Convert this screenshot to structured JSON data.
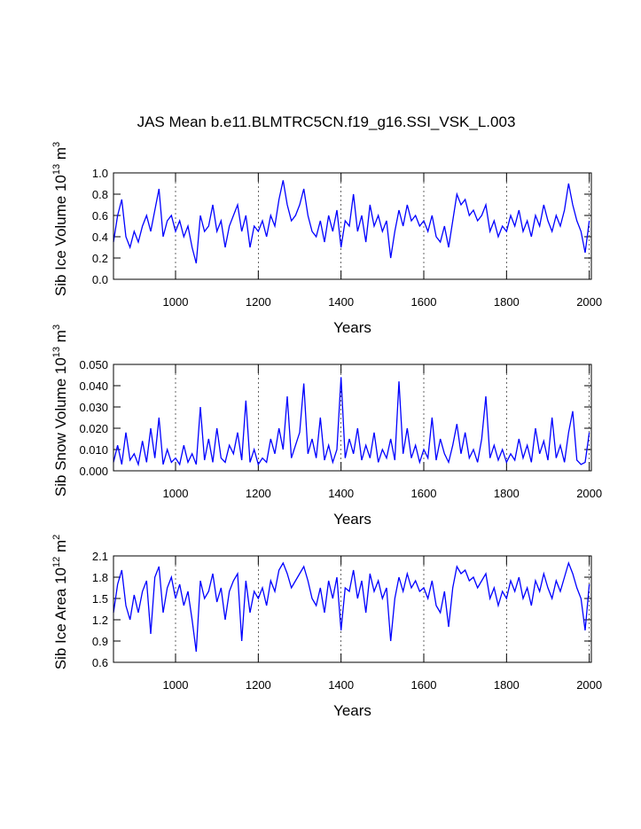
{
  "chart_data": [
    {
      "type": "line",
      "title": "JAS Mean b.e11.BLMTRC5CN.f19_g16.SSI_VSK_L.003",
      "xlabel": "Years",
      "ylabel": "Sib Ice Volume 10",
      "ylabel_exp": "13",
      "ylabel_unit": " m",
      "ylabel_unit_exp": "3",
      "color": "#0000ff",
      "xlim": [
        850,
        2005
      ],
      "xticks": [
        1000,
        1200,
        1400,
        1600,
        1800,
        2000
      ],
      "grid": true,
      "ylim": [
        0,
        1
      ],
      "yticks": [
        {
          "value": 0,
          "label": "0.0"
        },
        0.2,
        0.4,
        0.6,
        0.8,
        {
          "value": 1,
          "label": "1.0"
        }
      ],
      "x": [
        850,
        860,
        870,
        880,
        890,
        900,
        910,
        920,
        930,
        940,
        950,
        960,
        970,
        980,
        990,
        1000,
        1010,
        1020,
        1030,
        1040,
        1050,
        1060,
        1070,
        1080,
        1090,
        1100,
        1110,
        1120,
        1130,
        1140,
        1150,
        1160,
        1170,
        1180,
        1190,
        1200,
        1210,
        1220,
        1230,
        1240,
        1250,
        1260,
        1270,
        1280,
        1290,
        1300,
        1310,
        1320,
        1330,
        1340,
        1350,
        1360,
        1370,
        1380,
        1390,
        1400,
        1410,
        1420,
        1430,
        1440,
        1450,
        1460,
        1470,
        1480,
        1490,
        1500,
        1510,
        1520,
        1530,
        1540,
        1550,
        1560,
        1570,
        1580,
        1590,
        1600,
        1610,
        1620,
        1630,
        1640,
        1650,
        1660,
        1670,
        1680,
        1690,
        1700,
        1710,
        1720,
        1730,
        1740,
        1750,
        1760,
        1770,
        1780,
        1790,
        1800,
        1810,
        1820,
        1830,
        1840,
        1850,
        1860,
        1870,
        1880,
        1890,
        1900,
        1910,
        1920,
        1930,
        1940,
        1950,
        1960,
        1970,
        1980,
        1990,
        2000
      ],
      "values": [
        0.35,
        0.6,
        0.75,
        0.4,
        0.3,
        0.45,
        0.35,
        0.5,
        0.6,
        0.45,
        0.65,
        0.85,
        0.4,
        0.55,
        0.6,
        0.45,
        0.55,
        0.4,
        0.5,
        0.3,
        0.15,
        0.6,
        0.45,
        0.5,
        0.7,
        0.45,
        0.55,
        0.3,
        0.5,
        0.6,
        0.7,
        0.45,
        0.6,
        0.3,
        0.5,
        0.45,
        0.55,
        0.4,
        0.6,
        0.5,
        0.75,
        0.93,
        0.7,
        0.55,
        0.6,
        0.7,
        0.85,
        0.6,
        0.45,
        0.4,
        0.55,
        0.35,
        0.6,
        0.45,
        0.65,
        0.3,
        0.55,
        0.5,
        0.8,
        0.45,
        0.6,
        0.35,
        0.7,
        0.5,
        0.6,
        0.45,
        0.55,
        0.2,
        0.45,
        0.65,
        0.5,
        0.7,
        0.55,
        0.6,
        0.5,
        0.55,
        0.45,
        0.6,
        0.4,
        0.35,
        0.5,
        0.3,
        0.55,
        0.8,
        0.7,
        0.75,
        0.6,
        0.65,
        0.55,
        0.6,
        0.7,
        0.45,
        0.55,
        0.4,
        0.5,
        0.45,
        0.6,
        0.5,
        0.65,
        0.45,
        0.55,
        0.4,
        0.6,
        0.5,
        0.7,
        0.55,
        0.45,
        0.6,
        0.5,
        0.65,
        0.9,
        0.7,
        0.55,
        0.45,
        0.25,
        0.55
      ]
    },
    {
      "type": "line",
      "xlabel": "Years",
      "ylabel": "Sib Snow Volume 10",
      "ylabel_exp": "13",
      "ylabel_unit": " m",
      "ylabel_unit_exp": "3",
      "color": "#0000ff",
      "xlim": [
        850,
        2005
      ],
      "xticks": [
        1000,
        1200,
        1400,
        1600,
        1800,
        2000
      ],
      "grid": true,
      "ylim": [
        0,
        0.05
      ],
      "yticks": [
        {
          "value": 0,
          "label": "0.000"
        },
        {
          "value": 0.01,
          "label": "0.010"
        },
        {
          "value": 0.02,
          "label": "0.020"
        },
        {
          "value": 0.03,
          "label": "0.030"
        },
        {
          "value": 0.04,
          "label": "0.040"
        },
        {
          "value": 0.05,
          "label": "0.050"
        }
      ],
      "x": [
        850,
        860,
        870,
        880,
        890,
        900,
        910,
        920,
        930,
        940,
        950,
        960,
        970,
        980,
        990,
        1000,
        1010,
        1020,
        1030,
        1040,
        1050,
        1060,
        1070,
        1080,
        1090,
        1100,
        1110,
        1120,
        1130,
        1140,
        1150,
        1160,
        1170,
        1180,
        1190,
        1200,
        1210,
        1220,
        1230,
        1240,
        1250,
        1260,
        1270,
        1280,
        1290,
        1300,
        1310,
        1320,
        1330,
        1340,
        1350,
        1360,
        1370,
        1380,
        1390,
        1400,
        1410,
        1420,
        1430,
        1440,
        1450,
        1460,
        1470,
        1480,
        1490,
        1500,
        1510,
        1520,
        1530,
        1540,
        1550,
        1560,
        1570,
        1580,
        1590,
        1600,
        1610,
        1620,
        1630,
        1640,
        1650,
        1660,
        1670,
        1680,
        1690,
        1700,
        1710,
        1720,
        1730,
        1740,
        1750,
        1760,
        1770,
        1780,
        1790,
        1800,
        1810,
        1820,
        1830,
        1840,
        1850,
        1860,
        1870,
        1880,
        1890,
        1900,
        1910,
        1920,
        1930,
        1940,
        1950,
        1960,
        1970,
        1980,
        1990,
        2000
      ],
      "values": [
        0.004,
        0.012,
        0.003,
        0.018,
        0.005,
        0.008,
        0.003,
        0.014,
        0.004,
        0.02,
        0.006,
        0.025,
        0.003,
        0.01,
        0.004,
        0.006,
        0.003,
        0.012,
        0.004,
        0.008,
        0.003,
        0.03,
        0.005,
        0.015,
        0.004,
        0.02,
        0.006,
        0.004,
        0.012,
        0.008,
        0.018,
        0.005,
        0.033,
        0.004,
        0.01,
        0.003,
        0.006,
        0.004,
        0.015,
        0.008,
        0.02,
        0.01,
        0.035,
        0.006,
        0.012,
        0.018,
        0.041,
        0.008,
        0.015,
        0.006,
        0.025,
        0.005,
        0.012,
        0.004,
        0.01,
        0.044,
        0.006,
        0.015,
        0.008,
        0.02,
        0.005,
        0.012,
        0.006,
        0.018,
        0.004,
        0.01,
        0.006,
        0.015,
        0.005,
        0.042,
        0.008,
        0.02,
        0.006,
        0.012,
        0.004,
        0.01,
        0.006,
        0.025,
        0.005,
        0.015,
        0.008,
        0.004,
        0.012,
        0.022,
        0.008,
        0.018,
        0.006,
        0.01,
        0.004,
        0.015,
        0.035,
        0.006,
        0.012,
        0.005,
        0.01,
        0.004,
        0.008,
        0.005,
        0.015,
        0.006,
        0.012,
        0.004,
        0.02,
        0.008,
        0.014,
        0.005,
        0.025,
        0.006,
        0.012,
        0.004,
        0.018,
        0.028,
        0.005,
        0.003,
        0.004,
        0.018
      ]
    },
    {
      "type": "line",
      "xlabel": "Years",
      "ylabel": "Sib Ice Area 10",
      "ylabel_exp": "12",
      "ylabel_unit": " m",
      "ylabel_unit_exp": "2",
      "color": "#0000ff",
      "xlim": [
        850,
        2005
      ],
      "xticks": [
        1000,
        1200,
        1400,
        1600,
        1800,
        2000
      ],
      "grid": true,
      "ylim": [
        0.6,
        2.1
      ],
      "yticks": [
        0.6,
        0.9,
        1.2,
        1.5,
        1.8,
        2.1
      ],
      "x": [
        850,
        860,
        870,
        880,
        890,
        900,
        910,
        920,
        930,
        940,
        950,
        960,
        970,
        980,
        990,
        1000,
        1010,
        1020,
        1030,
        1040,
        1050,
        1060,
        1070,
        1080,
        1090,
        1100,
        1110,
        1120,
        1130,
        1140,
        1150,
        1160,
        1170,
        1180,
        1190,
        1200,
        1210,
        1220,
        1230,
        1240,
        1250,
        1260,
        1270,
        1280,
        1290,
        1300,
        1310,
        1320,
        1330,
        1340,
        1350,
        1360,
        1370,
        1380,
        1390,
        1400,
        1410,
        1420,
        1430,
        1440,
        1450,
        1460,
        1470,
        1480,
        1490,
        1500,
        1510,
        1520,
        1530,
        1540,
        1550,
        1560,
        1570,
        1580,
        1590,
        1600,
        1610,
        1620,
        1630,
        1640,
        1650,
        1660,
        1670,
        1680,
        1690,
        1700,
        1710,
        1720,
        1730,
        1740,
        1750,
        1760,
        1770,
        1780,
        1790,
        1800,
        1810,
        1820,
        1830,
        1840,
        1850,
        1860,
        1870,
        1880,
        1890,
        1900,
        1910,
        1920,
        1930,
        1940,
        1950,
        1960,
        1970,
        1980,
        1990,
        2000
      ],
      "values": [
        1.3,
        1.7,
        1.9,
        1.4,
        1.2,
        1.55,
        1.3,
        1.6,
        1.75,
        1.0,
        1.8,
        1.95,
        1.3,
        1.65,
        1.8,
        1.5,
        1.7,
        1.4,
        1.6,
        1.2,
        0.75,
        1.75,
        1.5,
        1.6,
        1.85,
        1.45,
        1.65,
        1.2,
        1.6,
        1.75,
        1.85,
        0.9,
        1.75,
        1.3,
        1.6,
        1.5,
        1.65,
        1.4,
        1.75,
        1.6,
        1.9,
        2.0,
        1.85,
        1.65,
        1.75,
        1.85,
        1.95,
        1.75,
        1.5,
        1.4,
        1.65,
        1.3,
        1.75,
        1.5,
        1.8,
        1.05,
        1.65,
        1.6,
        1.9,
        1.5,
        1.75,
        1.3,
        1.85,
        1.6,
        1.75,
        1.5,
        1.65,
        0.9,
        1.5,
        1.8,
        1.6,
        1.85,
        1.65,
        1.75,
        1.6,
        1.65,
        1.5,
        1.75,
        1.4,
        1.3,
        1.6,
        1.1,
        1.65,
        1.95,
        1.85,
        1.9,
        1.75,
        1.8,
        1.65,
        1.75,
        1.85,
        1.5,
        1.65,
        1.4,
        1.6,
        1.5,
        1.75,
        1.6,
        1.8,
        1.5,
        1.65,
        1.4,
        1.75,
        1.6,
        1.85,
        1.65,
        1.5,
        1.75,
        1.6,
        1.8,
        2.0,
        1.85,
        1.65,
        1.5,
        1.05,
        1.7
      ]
    }
  ]
}
